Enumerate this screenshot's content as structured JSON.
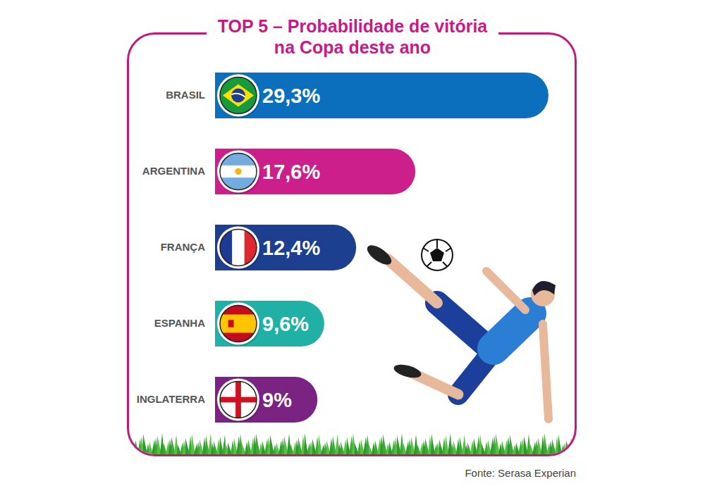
{
  "chart_data": {
    "type": "bar",
    "orientation": "horizontal",
    "title": "TOP 5 – Probabilidade de vitória\nna Copa deste ano",
    "source": "Fonte: Serasa Experian",
    "categories": [
      "BRASIL",
      "ARGENTINA",
      "FRANÇA",
      "ESPANHA",
      "INGLATERRA"
    ],
    "values": [
      29.3,
      17.6,
      12.4,
      9.6,
      9
    ],
    "value_labels": [
      "29,3%",
      "17,6%",
      "12,4%",
      "9,6%",
      "9%"
    ],
    "colors": [
      "#0b6fbe",
      "#cc1f8b",
      "#1d3f8f",
      "#1fb0a6",
      "#7b2383"
    ],
    "data_labels": true,
    "tick_labels": "y",
    "grid": false
  }
}
